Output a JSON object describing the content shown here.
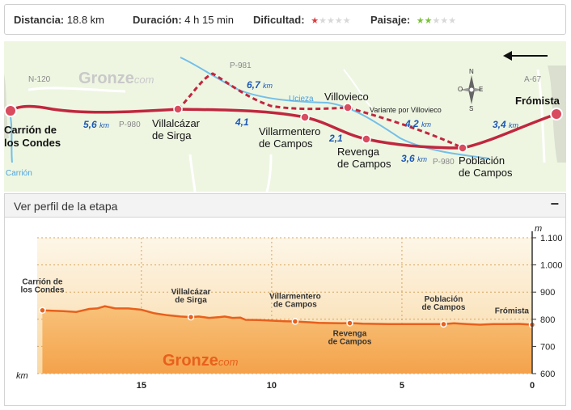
{
  "stats": {
    "distance_label": "Distancia:",
    "distance_value": "18.8 km",
    "duration_label": "Duración:",
    "duration_value": "4 h 15 min",
    "difficulty_label": "Dificultad:",
    "difficulty_stars": 1,
    "difficulty_max": 5,
    "difficulty_color": "#e03a3e",
    "landscape_label": "Paisaje:",
    "landscape_stars": 2,
    "landscape_max": 5,
    "landscape_color": "#7bc13a"
  },
  "map": {
    "logo_main": "Gronze",
    "logo_suffix": "com",
    "towns": {
      "carrion": "Carrión de\nlos Condes",
      "villalcazar": "Villalcázar\nde Sirga",
      "villarmentero": "Villarmentero\nde Campos",
      "villovieco": "Villovieco",
      "revenga": "Revenga\nde Campos",
      "poblacion": "Población\nde Campos",
      "fromista": "Frómista"
    },
    "roads": [
      "N-120",
      "P-981",
      "P-980",
      "P-980",
      "A-67"
    ],
    "rivers": [
      "Ucieza",
      "Carrión"
    ],
    "variant_label": "Variante por Villovieco",
    "distances": [
      {
        "value": "5,6",
        "unit": "km"
      },
      {
        "value": "6,7",
        "unit": "km"
      },
      {
        "value": "4,1",
        "unit": ""
      },
      {
        "value": "2,1",
        "unit": ""
      },
      {
        "value": "4,2",
        "unit": "km"
      },
      {
        "value": "3,6",
        "unit": "km"
      },
      {
        "value": "3,4",
        "unit": "km"
      }
    ],
    "compass": {
      "n": "N",
      "s": "S",
      "e": "E",
      "o": "O"
    },
    "direction_arrow": "left-arrow",
    "route_color": "#c0273e",
    "variant_color": "#c0273e",
    "river_color": "#74bfe8"
  },
  "profile_header": {
    "title": "Ver perfil de la etapa",
    "collapse_symbol": "−"
  },
  "chart_data": {
    "type": "area",
    "title": "",
    "xlabel": "km",
    "ylabel": "m",
    "xlim": [
      19,
      0
    ],
    "ylim": [
      600,
      1100
    ],
    "x_ticks": [
      15,
      10,
      5,
      0
    ],
    "x_tick_labels": [
      "15",
      "10",
      "5",
      "0"
    ],
    "y_ticks": [
      600,
      700,
      800,
      900,
      1000,
      1100
    ],
    "y_tick_labels": [
      "600",
      "700",
      "800",
      "900",
      "1.000",
      "1.100"
    ],
    "grid": true,
    "logo_main": "Gronze",
    "logo_suffix": "com",
    "fill_color": "#f7b56a",
    "line_color": "#e8601c",
    "series": [
      {
        "x": [
          18.8,
          18.0,
          17.5,
          17.0,
          16.7,
          16.4,
          16.0,
          15.5,
          15.0,
          14.5,
          14.0,
          13.5,
          13.1,
          12.8,
          12.4,
          12.0,
          11.8,
          11.5,
          11.2,
          11.0,
          10.5,
          10.0,
          9.5,
          9.1,
          8.7,
          8.2,
          7.8,
          7.3,
          7.0,
          6.5,
          6.0,
          5.5,
          5.0,
          4.5,
          4.0,
          3.4,
          3.0,
          2.5,
          2.0,
          1.5,
          1.0,
          0.5,
          0.0
        ],
        "y": [
          833,
          830,
          827,
          838,
          840,
          848,
          840,
          840,
          835,
          822,
          815,
          810,
          808,
          810,
          805,
          808,
          810,
          805,
          806,
          798,
          797,
          795,
          793,
          792,
          790,
          787,
          786,
          785,
          786,
          784,
          783,
          782,
          782,
          782,
          782,
          782,
          785,
          782,
          780,
          782,
          782,
          783,
          780
        ]
      }
    ],
    "points": [
      {
        "x": 18.8,
        "y": 833,
        "label": "Carrión de\nlos Condes"
      },
      {
        "x": 13.1,
        "y": 808,
        "label": "Villalcázar\nde Sirga"
      },
      {
        "x": 9.1,
        "y": 792,
        "label": "Villarmentero\nde Campos"
      },
      {
        "x": 7.0,
        "y": 786,
        "label": "Revenga\nde Campos"
      },
      {
        "x": 3.4,
        "y": 782,
        "label": "Población\nde Campos"
      },
      {
        "x": 0.0,
        "y": 780,
        "label": "Frómista"
      }
    ]
  }
}
